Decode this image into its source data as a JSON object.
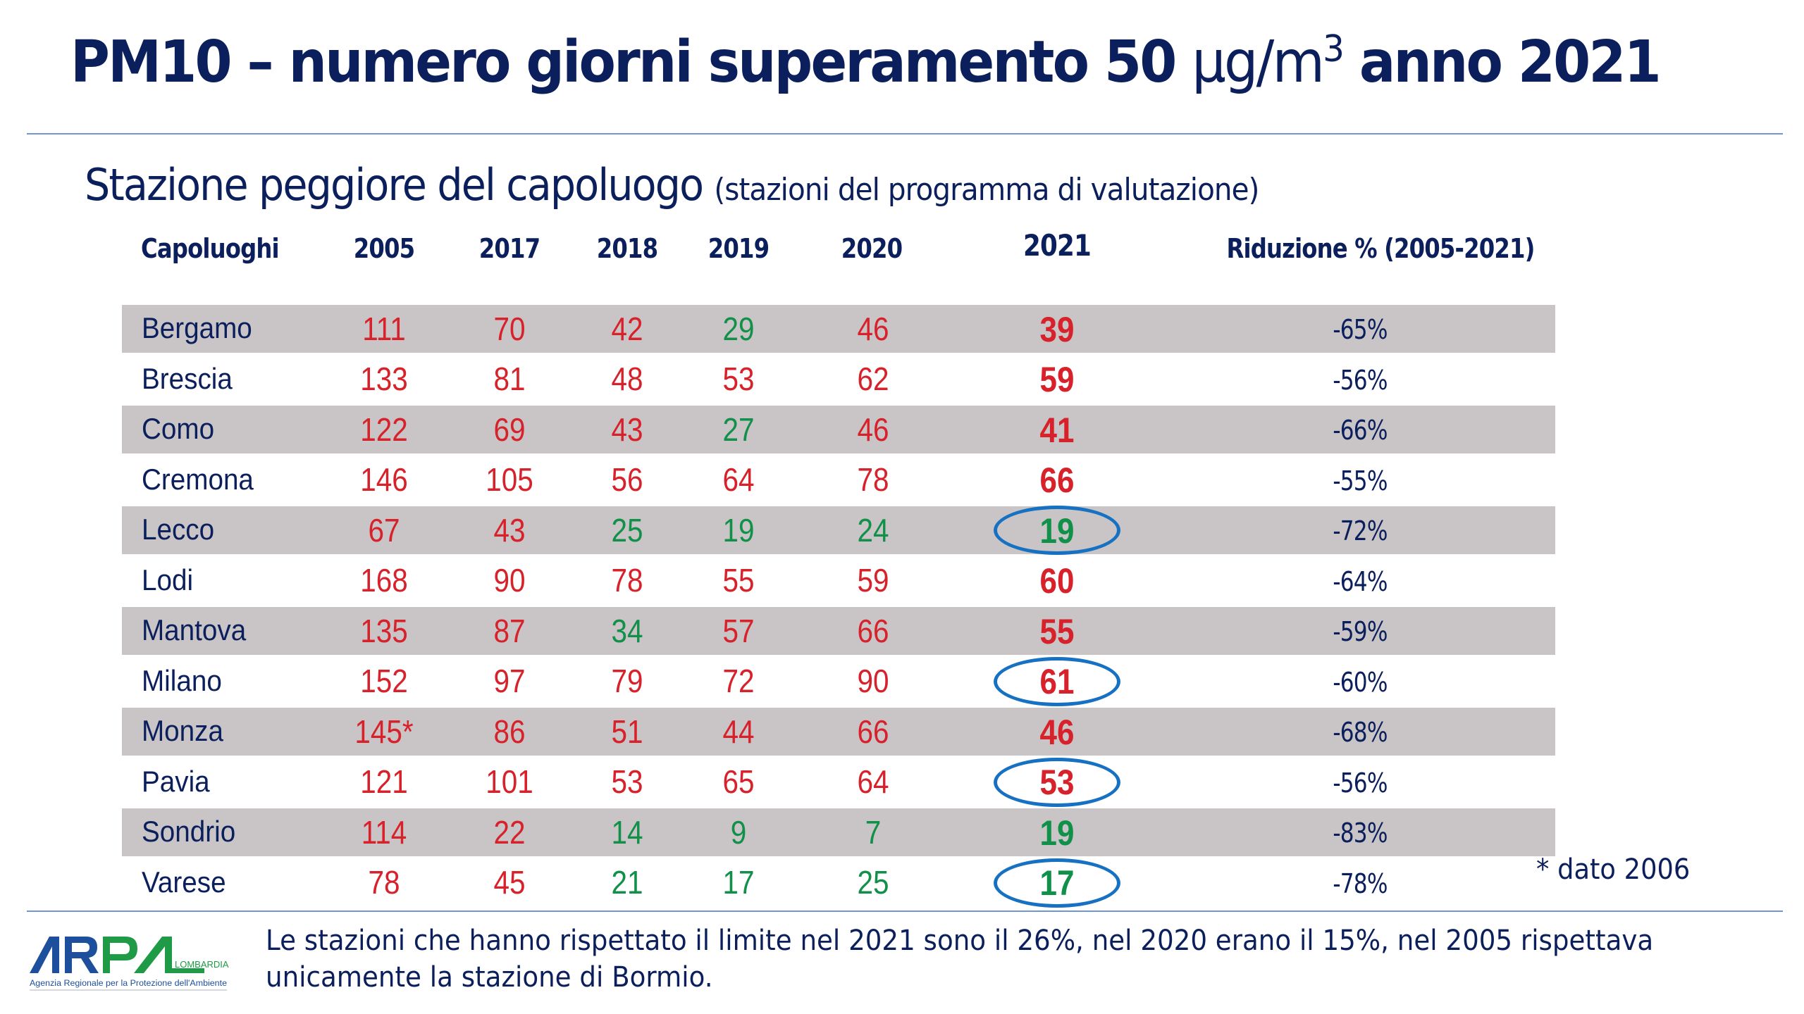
{
  "title": {
    "prefix": "PM10 – numero giorni superamento 50 ",
    "unit": "μg/m",
    "unit_sup": "3",
    "suffix": " anno 2021"
  },
  "subtitle": {
    "main": "Stazione peggiore del capoluogo",
    "note": "(stazioni del programma di valutazione)"
  },
  "table": {
    "headers": [
      "Capoluoghi",
      "2005",
      "2017",
      "2018",
      "2019",
      "2020",
      "2021",
      "Riduzione % (2005-2021)"
    ],
    "rows": [
      {
        "city": "Bergamo",
        "v2005": "111",
        "v2017": "70",
        "v2018": "42",
        "v2019": "29",
        "v2020": "46",
        "v2021": "39",
        "reduction": "-65%",
        "circled": false,
        "colors": [
          "red",
          "red",
          "red",
          "green",
          "red",
          "red"
        ]
      },
      {
        "city": "Brescia",
        "v2005": "133",
        "v2017": "81",
        "v2018": "48",
        "v2019": "53",
        "v2020": "62",
        "v2021": "59",
        "reduction": "-56%",
        "circled": false,
        "colors": [
          "red",
          "red",
          "red",
          "red",
          "red",
          "red"
        ]
      },
      {
        "city": "Como",
        "v2005": "122",
        "v2017": "69",
        "v2018": "43",
        "v2019": "27",
        "v2020": "46",
        "v2021": "41",
        "reduction": "-66%",
        "circled": false,
        "colors": [
          "red",
          "red",
          "red",
          "green",
          "red",
          "red"
        ]
      },
      {
        "city": "Cremona",
        "v2005": "146",
        "v2017": "105",
        "v2018": "56",
        "v2019": "64",
        "v2020": "78",
        "v2021": "66",
        "reduction": "-55%",
        "circled": false,
        "colors": [
          "red",
          "red",
          "red",
          "red",
          "red",
          "red"
        ]
      },
      {
        "city": "Lecco",
        "v2005": "67",
        "v2017": "43",
        "v2018": "25",
        "v2019": "19",
        "v2020": "24",
        "v2021": "19",
        "reduction": "-72%",
        "circled": true,
        "colors": [
          "red",
          "red",
          "green",
          "green",
          "green",
          "green"
        ]
      },
      {
        "city": "Lodi",
        "v2005": "168",
        "v2017": "90",
        "v2018": "78",
        "v2019": "55",
        "v2020": "59",
        "v2021": "60",
        "reduction": "-64%",
        "circled": false,
        "colors": [
          "red",
          "red",
          "red",
          "red",
          "red",
          "red"
        ]
      },
      {
        "city": "Mantova",
        "v2005": "135",
        "v2017": "87",
        "v2018": "34",
        "v2019": "57",
        "v2020": "66",
        "v2021": "55",
        "reduction": "-59%",
        "circled": false,
        "colors": [
          "red",
          "red",
          "green",
          "red",
          "red",
          "red"
        ]
      },
      {
        "city": "Milano",
        "v2005": "152",
        "v2017": "97",
        "v2018": "79",
        "v2019": "72",
        "v2020": "90",
        "v2021": "61",
        "reduction": "-60%",
        "circled": true,
        "colors": [
          "red",
          "red",
          "red",
          "red",
          "red",
          "red"
        ]
      },
      {
        "city": "Monza",
        "v2005": "145*",
        "v2017": "86",
        "v2018": "51",
        "v2019": "44",
        "v2020": "66",
        "v2021": "46",
        "reduction": "-68%",
        "circled": false,
        "colors": [
          "red",
          "red",
          "red",
          "red",
          "red",
          "red"
        ]
      },
      {
        "city": "Pavia",
        "v2005": "121",
        "v2017": "101",
        "v2018": "53",
        "v2019": "65",
        "v2020": "64",
        "v2021": "53",
        "reduction": "-56%",
        "circled": true,
        "colors": [
          "red",
          "red",
          "red",
          "red",
          "red",
          "red"
        ]
      },
      {
        "city": "Sondrio",
        "v2005": "114",
        "v2017": "22",
        "v2018": "14",
        "v2019": "9",
        "v2020": "7",
        "v2021": "19",
        "reduction": "-83%",
        "circled": false,
        "colors": [
          "red",
          "red",
          "green",
          "green",
          "green",
          "green"
        ]
      },
      {
        "city": "Varese",
        "v2005": "78",
        "v2017": "45",
        "v2018": "21",
        "v2019": "17",
        "v2020": "25",
        "v2021": "17",
        "reduction": "-78%",
        "circled": true,
        "colors": [
          "red",
          "red",
          "green",
          "green",
          "green",
          "green"
        ]
      }
    ]
  },
  "footnote": "* dato 2006",
  "footer_text": "Le stazioni che hanno rispettato il limite nel 2021 sono il 26%, nel 2020 erano il 15%, nel 2005 rispettava unicamente la stazione di Bormio.",
  "logo": {
    "name": "ARPA",
    "region": "LOMBARDIA",
    "tagline": "Agenzia Regionale per la Protezione dell'Ambiente"
  },
  "colors": {
    "navy": "#0b1f5c",
    "red": "#d7212b",
    "green": "#11904a",
    "band": "#c9c4c5",
    "ellipse": "#1771c3",
    "rule": "#6f95d3"
  }
}
